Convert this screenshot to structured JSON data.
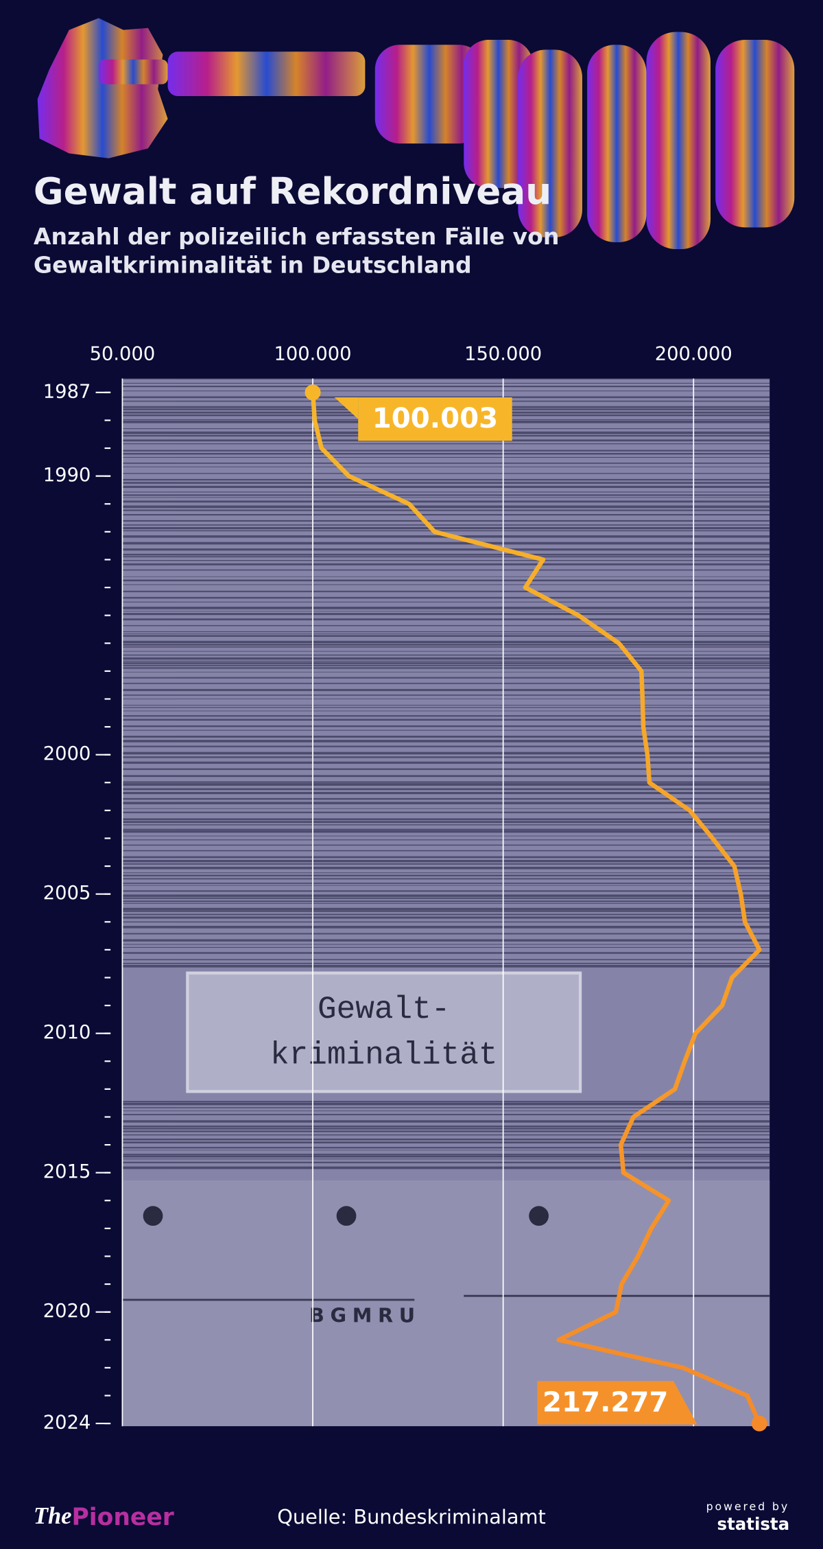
{
  "chart_data": {
    "type": "line",
    "orientation": "vertical",
    "title": "Gewalt auf Rekordniveau",
    "subtitle": "Anzahl der polizeilich erfassten Fälle von Gewaltkriminalität in Deutschland",
    "x": [
      1987,
      1988,
      1989,
      1990,
      1991,
      1992,
      1993,
      1994,
      1995,
      1996,
      1997,
      1998,
      1999,
      2000,
      2001,
      2002,
      2003,
      2004,
      2005,
      2006,
      2007,
      2008,
      2009,
      2010,
      2011,
      2012,
      2013,
      2014,
      2015,
      2016,
      2017,
      2018,
      2019,
      2020,
      2021,
      2022,
      2023,
      2024
    ],
    "series": [
      {
        "name": "Gewaltkriminalität",
        "color": "#f6a623",
        "values": [
          100003,
          100500,
          102300,
          109500,
          125300,
          132000,
          160500,
          155800,
          169800,
          180400,
          186300,
          186600,
          186800,
          187900,
          188400,
          199000,
          205000,
          210700,
          212400,
          213500,
          217300,
          210100,
          207500,
          200500,
          197700,
          195100,
          184200,
          180900,
          181600,
          193500,
          188900,
          185400,
          181100,
          179600,
          164600,
          197200,
          214100,
          217277
        ],
        "value_labels": [
          "100.003",
          null,
          null,
          null,
          null,
          null,
          null,
          null,
          null,
          null,
          null,
          null,
          null,
          null,
          null,
          null,
          null,
          null,
          null,
          null,
          null,
          null,
          null,
          null,
          null,
          null,
          null,
          null,
          null,
          null,
          null,
          null,
          null,
          null,
          null,
          null,
          null,
          "217.277"
        ]
      }
    ],
    "xlim": [
      50000,
      220000
    ],
    "xticks": [
      {
        "value": 50000,
        "label": "50.000"
      },
      {
        "value": 100000,
        "label": "100.000"
      },
      {
        "value": 150000,
        "label": "150.000"
      },
      {
        "value": 200000,
        "label": "200.000"
      }
    ],
    "ylim": [
      1986.5,
      2024.1
    ],
    "yticks": [
      1987,
      1990,
      2000,
      2005,
      2010,
      2015,
      2020,
      2024
    ],
    "grid": true,
    "image_text": [
      "Gewalt-",
      "kriminalität",
      "BGMRU"
    ],
    "source": "Quelle: Bundeskriminalamt",
    "logo": [
      "The",
      "Pioneer"
    ],
    "branding": [
      "powered by",
      "statista"
    ]
  }
}
